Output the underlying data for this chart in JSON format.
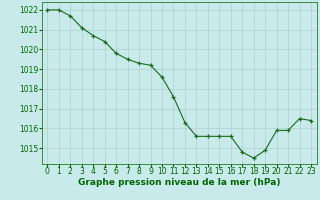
{
  "x": [
    0,
    1,
    2,
    3,
    4,
    5,
    6,
    7,
    8,
    9,
    10,
    11,
    12,
    13,
    14,
    15,
    16,
    17,
    18,
    19,
    20,
    21,
    22,
    23
  ],
  "y": [
    1022.0,
    1022.0,
    1021.7,
    1021.1,
    1020.7,
    1020.4,
    1019.8,
    1019.5,
    1019.3,
    1019.2,
    1018.6,
    1017.6,
    1016.3,
    1015.6,
    1015.6,
    1015.6,
    1015.6,
    1014.8,
    1014.5,
    1014.9,
    1015.9,
    1015.9,
    1016.5,
    1016.4
  ],
  "ylim": [
    1014.2,
    1022.4
  ],
  "xlim": [
    -0.5,
    23.5
  ],
  "yticks": [
    1015,
    1016,
    1017,
    1018,
    1019,
    1020,
    1021,
    1022
  ],
  "xticks": [
    0,
    1,
    2,
    3,
    4,
    5,
    6,
    7,
    8,
    9,
    10,
    11,
    12,
    13,
    14,
    15,
    16,
    17,
    18,
    19,
    20,
    21,
    22,
    23
  ],
  "line_color": "#1a6b1a",
  "marker_color": "#1a6b1a",
  "bg_color": "#c8eaea",
  "grid_color": "#b0cece",
  "xlabel": "Graphe pression niveau de la mer (hPa)",
  "xlabel_color": "#006600",
  "tick_color": "#006600",
  "tick_fontsize": 5.5,
  "xlabel_fontsize": 6.5
}
